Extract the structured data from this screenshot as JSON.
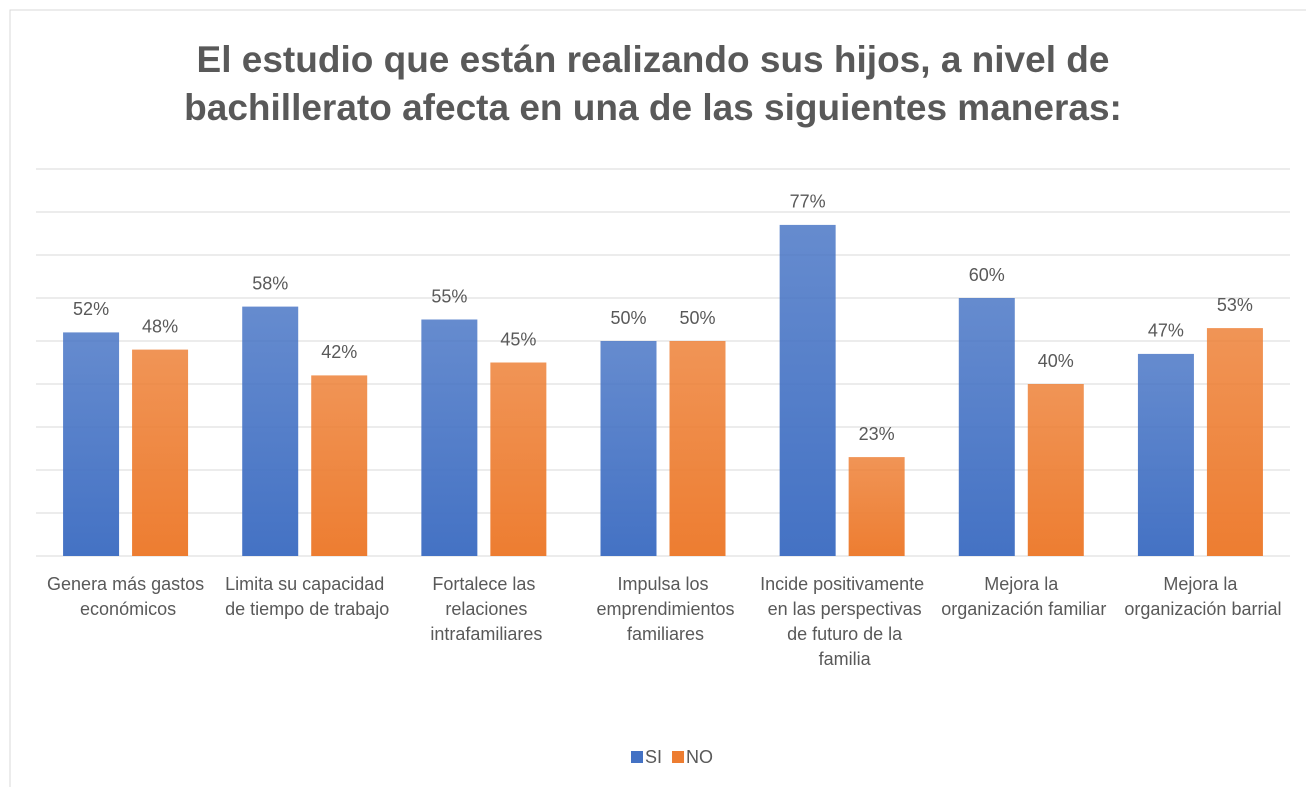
{
  "chart_data": {
    "type": "bar",
    "title": "El estudio que están realizando sus hijos, a nivel de bachillerato afecta en una de las siguientes maneras:",
    "categories": [
      "Genera más gastos económicos",
      "Limita su capacidad de tiempo de trabajo",
      "Fortalece las relaciones intrafamiliares",
      "Impulsa los emprendimientos familiares",
      "Incide positivamente en las perspectivas de futuro de la familia",
      "Mejora la organización familiar",
      "Mejora la organización barrial"
    ],
    "series": [
      {
        "name": "SI",
        "color": "#4472c4",
        "values": [
          52,
          58,
          55,
          50,
          77,
          60,
          47
        ],
        "value_labels": [
          "52%",
          "58%",
          "55%",
          "50%",
          "77%",
          "60%",
          "47%"
        ]
      },
      {
        "name": "NO",
        "color": "#ed7d31",
        "values": [
          48,
          42,
          45,
          50,
          23,
          40,
          53
        ],
        "value_labels": [
          "48%",
          "42%",
          "45%",
          "50%",
          "23%",
          "40%",
          "53%"
        ]
      }
    ],
    "ylim": [
      0,
      90
    ],
    "yticks": [
      0,
      10,
      20,
      30,
      40,
      50,
      60,
      70,
      80,
      90
    ],
    "grid": true,
    "legend": "bottom"
  }
}
